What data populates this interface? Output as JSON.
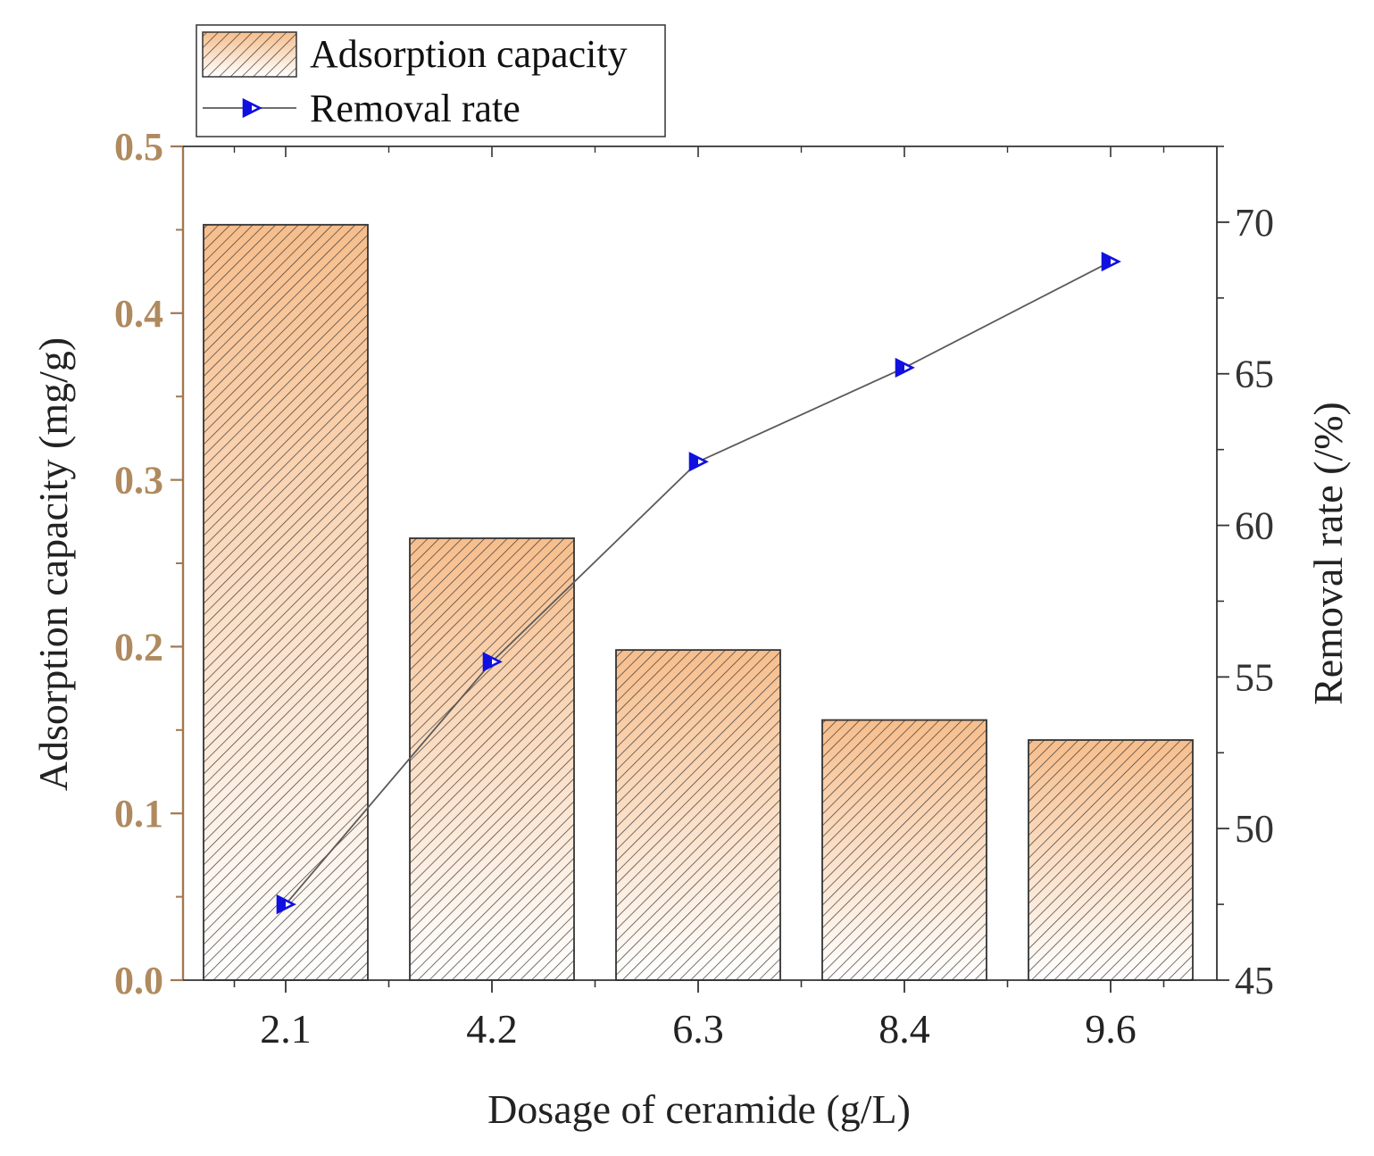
{
  "chart_data": {
    "type": "bar+line",
    "categories": [
      "2.1",
      "4.2",
      "6.3",
      "8.4",
      "9.6"
    ],
    "series": [
      {
        "name": "Adsorption capacity",
        "kind": "bar",
        "axis": "left",
        "values": [
          0.453,
          0.265,
          0.198,
          0.156,
          0.144
        ]
      },
      {
        "name": "Removal rate",
        "kind": "line",
        "axis": "right",
        "values": [
          47.5,
          55.5,
          62.1,
          65.2,
          68.7
        ]
      }
    ],
    "xlabel": "Dosage of ceramide (g/L)",
    "ylabel_left": "Adsorption capacity (mg/g)",
    "ylabel_right": "Removal rate (/%)",
    "ylim_left": [
      0,
      0.5
    ],
    "yticks_left": [
      "0.0",
      "0.1",
      "0.2",
      "0.3",
      "0.4",
      "0.5"
    ],
    "ylim_right": [
      45,
      72.5
    ],
    "yticks_right": [
      "45",
      "50",
      "55",
      "60",
      "65",
      "70"
    ],
    "legend_position": "top-left",
    "grid": false,
    "colors": {
      "bar_fill_top": "#f7be8c",
      "bar_fill_bottom": "#ffffff",
      "bar_hatch": "#3a3a3a",
      "bar_edge": "#333333",
      "left_axis": "#a07850",
      "left_tick_text": "#b08a5f",
      "line": "#5a5a5a",
      "marker_edge": "#1010e0",
      "axis": "#333333",
      "text": "#222222"
    }
  }
}
